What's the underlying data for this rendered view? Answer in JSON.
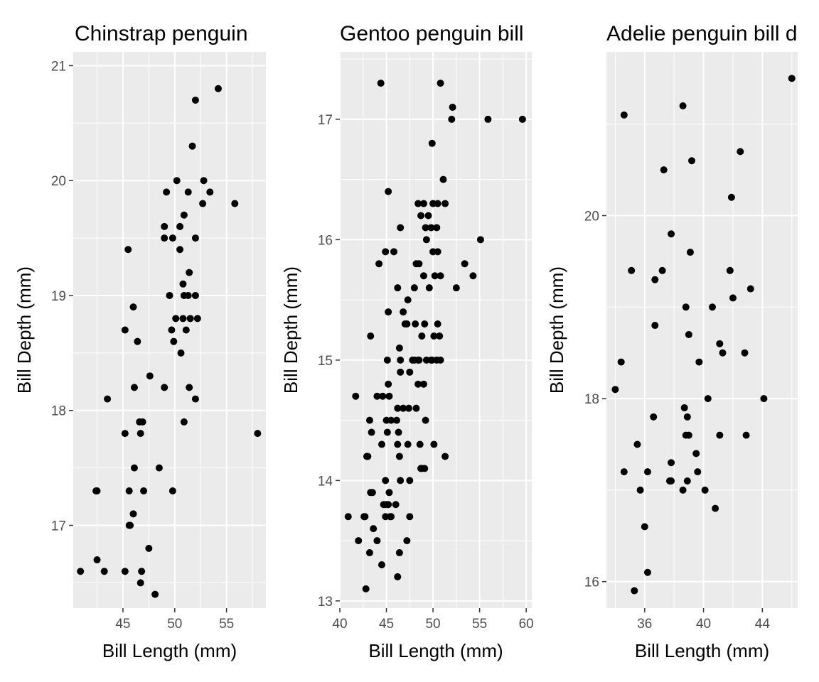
{
  "chart_data": [
    {
      "type": "scatter",
      "title": "Chinstrap penguin",
      "xlabel": "Bill Length (mm)",
      "ylabel": "Bill Depth (mm)",
      "xlim": [
        40.2,
        58.8
      ],
      "ylim": [
        16.28,
        21.12
      ],
      "xticks": [
        45,
        50,
        55
      ],
      "yticks": [
        17,
        18,
        19,
        20,
        21
      ],
      "grid": true,
      "background": "#ebebeb",
      "point_color": "#000000",
      "x": [
        54.2,
        52.0,
        51.7,
        50.2,
        52.8,
        53.4,
        49.2,
        51.3,
        52.7,
        55.8,
        50.9,
        49.0,
        50.5,
        49.0,
        49.8,
        52.0,
        50.5,
        45.5,
        51.4,
        50.8,
        46.0,
        49.5,
        50.9,
        51.3,
        52.0,
        50.1,
        50.8,
        51.5,
        52.2,
        45.2,
        49.7,
        46.4,
        51.1,
        50.6,
        47.6,
        46.1,
        49.0,
        51.4,
        43.5,
        52.0,
        49.9,
        50.9,
        46.6,
        46.9,
        46.7,
        45.2,
        58.0,
        46.1,
        48.5,
        42.5,
        42.4,
        45.6,
        47.0,
        49.8,
        46.0,
        45.7,
        45.6,
        47.5,
        42.5,
        40.9,
        43.2,
        45.2,
        46.8,
        46.7,
        48.1
      ],
      "y": [
        20.8,
        20.7,
        20.3,
        20.0,
        20.0,
        19.9,
        19.9,
        19.9,
        19.8,
        19.8,
        19.7,
        19.6,
        19.6,
        19.5,
        19.5,
        19.5,
        19.4,
        19.4,
        19.2,
        19.1,
        18.9,
        19.0,
        19.0,
        19.0,
        19.0,
        18.8,
        18.8,
        18.8,
        18.8,
        18.7,
        18.7,
        18.6,
        18.7,
        18.5,
        18.3,
        18.2,
        18.2,
        18.2,
        18.1,
        18.1,
        18.6,
        17.9,
        17.9,
        17.9,
        17.8,
        17.8,
        17.8,
        17.5,
        17.5,
        17.3,
        17.3,
        17.3,
        17.3,
        17.3,
        17.1,
        17.0,
        17.0,
        16.8,
        16.7,
        16.6,
        16.6,
        16.6,
        16.6,
        16.5,
        16.4
      ]
    },
    {
      "type": "scatter",
      "title": "Gentoo penguin bill",
      "xlabel": "Bill Length (mm)",
      "ylabel": "Bill Depth (mm)",
      "xlim": [
        40.0,
        60.6
      ],
      "ylim": [
        12.94,
        17.56
      ],
      "xticks": [
        40,
        45,
        50,
        55,
        60
      ],
      "yticks": [
        13,
        14,
        15,
        16,
        17
      ],
      "grid": true,
      "background": "#ebebeb",
      "point_color": "#000000",
      "x": [
        44.4,
        50.8,
        52.1,
        52.0,
        55.9,
        59.6,
        49.9,
        51.1,
        45.2,
        50.0,
        51.3,
        50.5,
        49.0,
        48.4,
        48.7,
        49.5,
        49.2,
        49.8,
        50.4,
        46.5,
        49.3,
        44.9,
        45.8,
        55.1,
        50.0,
        50.5,
        53.4,
        44.2,
        48.2,
        48.5,
        49.0,
        50.2,
        50.8,
        54.3,
        46.2,
        48.0,
        49.6,
        52.5,
        47.3,
        46.8,
        45.2,
        47.2,
        47.0,
        48.1,
        48.8,
        50.1,
        50.7,
        43.3,
        46.4,
        49.1,
        50.5,
        49.8,
        45.1,
        46.5,
        48.0,
        47.8,
        48.4,
        48.5,
        49.3,
        49.9,
        50.4,
        50.8,
        46.5,
        47.5,
        49.0,
        45.2,
        48.4,
        44.6,
        41.7,
        44.0,
        45.3,
        46.2,
        46.8,
        47.4,
        48.2,
        43.2,
        46.1,
        45.0,
        45.5,
        49.2,
        43.4,
        44.5,
        46.2,
        47.3,
        48.6,
        45.1,
        46.3,
        44.9,
        50.1,
        43.0,
        42.9,
        46.4,
        48.7,
        51.3,
        47.5,
        46.5,
        48.8,
        49.1,
        43.3,
        45.3,
        43.5,
        43.6,
        45.2,
        46.0,
        45.0,
        44.7,
        44.9,
        45.5,
        40.9,
        42.6,
        42.7,
        45.4,
        47.5,
        44.0,
        47.2,
        42.0,
        46.4,
        43.2,
        44.5,
        46.2,
        42.8
      ],
      "y": [
        17.3,
        17.3,
        17.1,
        17.0,
        17.0,
        17.0,
        16.8,
        16.5,
        16.4,
        16.3,
        16.3,
        16.3,
        16.3,
        16.3,
        16.2,
        16.2,
        16.1,
        16.1,
        16.1,
        16.1,
        16.0,
        15.9,
        15.9,
        16.0,
        15.9,
        15.9,
        15.8,
        15.8,
        15.8,
        15.8,
        15.7,
        15.7,
        15.7,
        15.7,
        15.6,
        15.6,
        15.6,
        15.6,
        15.5,
        15.4,
        15.4,
        15.3,
        15.3,
        15.3,
        15.2,
        15.2,
        15.2,
        15.2,
        15.1,
        15.3,
        15.3,
        15.0,
        15.0,
        15.0,
        15.0,
        15.0,
        15.0,
        15.0,
        15.0,
        15.0,
        15.0,
        15.0,
        14.9,
        14.9,
        14.8,
        14.8,
        14.8,
        14.7,
        14.7,
        14.7,
        14.7,
        14.6,
        14.6,
        14.6,
        14.6,
        14.5,
        14.5,
        14.5,
        14.5,
        14.5,
        14.4,
        14.3,
        14.3,
        14.3,
        14.3,
        14.4,
        14.4,
        14.0,
        14.3,
        14.2,
        14.2,
        14.2,
        14.1,
        14.2,
        14.0,
        14.0,
        14.1,
        14.1,
        13.9,
        13.9,
        13.9,
        13.6,
        13.8,
        13.8,
        13.8,
        13.8,
        13.7,
        13.7,
        13.7,
        13.7,
        13.7,
        13.7,
        13.7,
        13.5,
        13.5,
        13.5,
        13.4,
        13.4,
        13.3,
        13.2,
        13.1
      ]
    },
    {
      "type": "scatter",
      "title": "Adelie penguin bill d",
      "xlabel": "Bill Length (mm)",
      "ylabel": "Bill Depth (mm)",
      "xlim": [
        33.4,
        46.4
      ],
      "ylim": [
        15.71,
        21.79
      ],
      "xticks": [
        36,
        40,
        44
      ],
      "yticks": [
        16,
        18,
        20
      ],
      "grid": true,
      "background": "#ebebeb",
      "point_color": "#000000",
      "x": [
        46.0,
        34.6,
        38.6,
        42.5,
        39.2,
        37.3,
        41.9,
        37.8,
        39.1,
        35.1,
        37.2,
        41.8,
        36.7,
        42.0,
        43.2,
        38.8,
        40.6,
        36.7,
        39.0,
        41.1,
        42.8,
        41.3,
        39.7,
        34.4,
        40.3,
        34.0,
        44.1,
        36.6,
        38.9,
        38.7,
        41.1,
        42.9,
        39.0,
        38.8,
        37.8,
        35.5,
        39.5,
        37.8,
        34.6,
        36.2,
        39.6,
        38.9,
        37.7,
        35.7,
        38.6,
        40.1,
        40.8,
        36.0,
        36.2,
        35.3
      ],
      "y": [
        21.5,
        21.1,
        21.2,
        20.7,
        20.6,
        20.5,
        20.2,
        19.8,
        19.6,
        19.4,
        19.4,
        19.4,
        19.3,
        19.1,
        19.2,
        19.0,
        19.0,
        18.8,
        18.7,
        18.6,
        18.5,
        18.5,
        18.4,
        18.4,
        18.0,
        18.1,
        18.0,
        17.8,
        17.8,
        17.9,
        17.6,
        17.6,
        17.6,
        17.6,
        17.3,
        17.5,
        17.4,
        17.1,
        17.2,
        17.2,
        17.2,
        17.1,
        17.1,
        17.0,
        17.0,
        17.0,
        16.8,
        16.6,
        16.1,
        15.9
      ]
    }
  ]
}
